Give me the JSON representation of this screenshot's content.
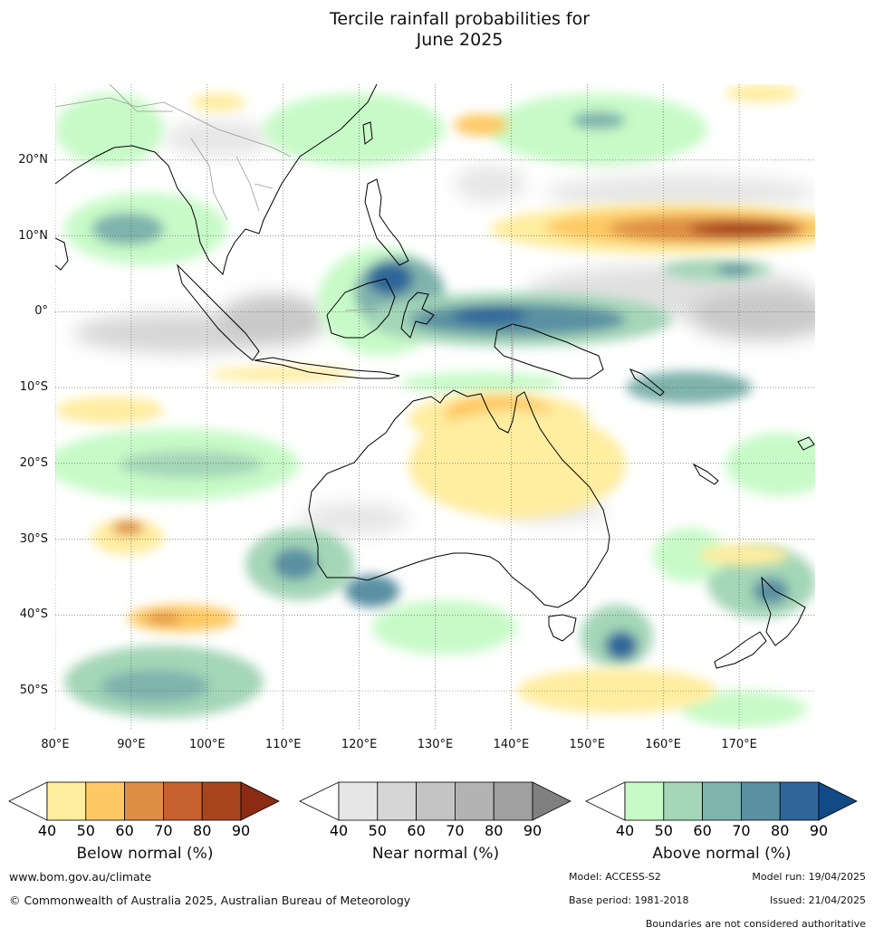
{
  "title": {
    "line1": "Tercile rainfall probabilities for",
    "line2": "June 2025"
  },
  "map": {
    "lat_labels": [
      {
        "text": "20°N",
        "lat": 20
      },
      {
        "text": "10°N",
        "lat": 10
      },
      {
        "text": "0°",
        "lat": 0
      },
      {
        "text": "10°S",
        "lat": -10
      },
      {
        "text": "20°S",
        "lat": -20
      },
      {
        "text": "30°S",
        "lat": -30
      },
      {
        "text": "40°S",
        "lat": -40
      },
      {
        "text": "50°S",
        "lat": -50
      }
    ],
    "lon_labels": [
      {
        "text": "80°E",
        "lon": 80
      },
      {
        "text": "90°E",
        "lon": 90
      },
      {
        "text": "100°E",
        "lon": 100
      },
      {
        "text": "110°E",
        "lon": 110
      },
      {
        "text": "120°E",
        "lon": 120
      },
      {
        "text": "130°E",
        "lon": 130
      },
      {
        "text": "140°E",
        "lon": 140
      },
      {
        "text": "150°E",
        "lon": 150
      },
      {
        "text": "160°E",
        "lon": 160
      },
      {
        "text": "170°E",
        "lon": 170
      }
    ],
    "lon_range": [
      80,
      180
    ],
    "lat_range": [
      -55,
      30
    ]
  },
  "colorbars": [
    {
      "title": "Below normal (%)",
      "ticks": [
        "40",
        "50",
        "60",
        "70",
        "80",
        "90"
      ],
      "colors": [
        "#ffeda0",
        "#fec965",
        "#de8f45",
        "#c7602f",
        "#a8451f",
        "#8b2b13"
      ]
    },
    {
      "title": "Near normal (%)",
      "ticks": [
        "40",
        "50",
        "60",
        "70",
        "80",
        "90"
      ],
      "colors": [
        "#e6e6e6",
        "#d6d6d6",
        "#c4c4c4",
        "#b3b3b3",
        "#a0a0a0",
        "#808080"
      ]
    },
    {
      "title": "Above normal (%)",
      "ticks": [
        "40",
        "50",
        "60",
        "70",
        "80",
        "90"
      ],
      "colors": [
        "#c8fac8",
        "#a4d6b7",
        "#7fb3ad",
        "#5a90a2",
        "#2f6699",
        "#124a88"
      ]
    }
  ],
  "footer": {
    "url": "www.bom.gov.au/climate",
    "copyright": "© Commonwealth of Australia 2025, Australian Bureau of Meteorology",
    "model": "Model: ACCESS-S2",
    "model_run": "Model run: 19/04/2025",
    "base_period": "Base period: 1981-2018",
    "issued": "Issued: 21/04/2025",
    "disclaimer": "Boundaries are not considered authoritative"
  }
}
